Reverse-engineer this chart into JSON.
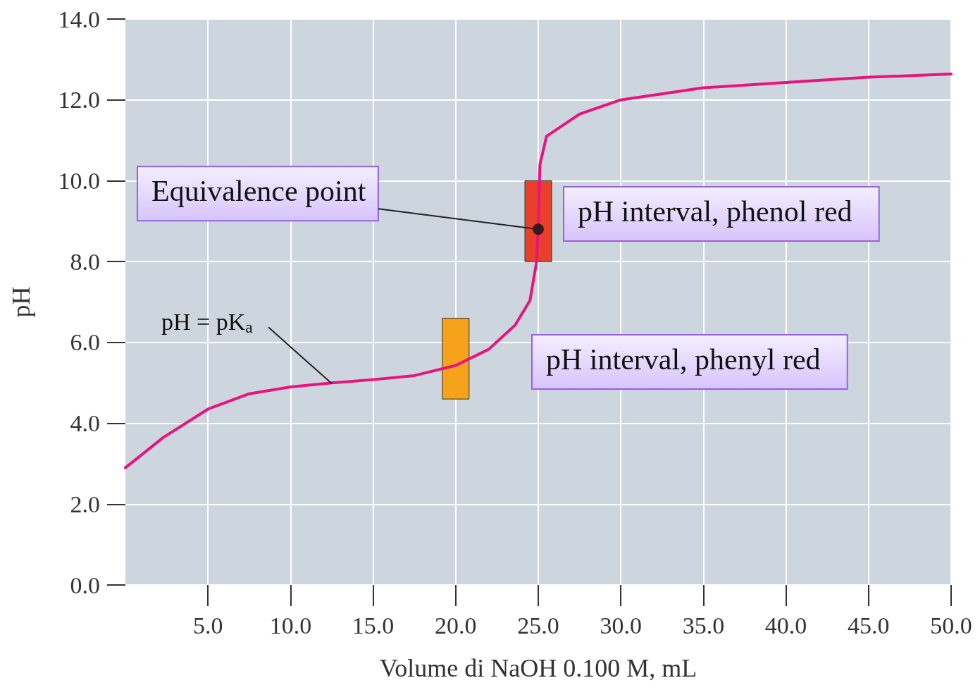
{
  "chart_data": {
    "type": "line",
    "xlabel": "Volume di NaOH 0.100 M, mL",
    "ylabel": "pH",
    "xlim": [
      0,
      50
    ],
    "xticks": [
      {
        "value": 5,
        "label": "5.0"
      },
      {
        "value": 10,
        "label": "10.0"
      },
      {
        "value": 15,
        "label": "15.0"
      },
      {
        "value": 20,
        "label": "20.0"
      },
      {
        "value": 25,
        "label": "25.0"
      },
      {
        "value": 30,
        "label": "30.0"
      },
      {
        "value": 35,
        "label": "35.0"
      },
      {
        "value": 40,
        "label": "40.0"
      },
      {
        "value": 45,
        "label": "45.0"
      },
      {
        "value": 50,
        "label": "50.0"
      }
    ],
    "ylim": [
      0,
      14
    ],
    "yticks": [
      {
        "value": 0,
        "label": "0.0"
      },
      {
        "value": 2,
        "label": "2.0"
      },
      {
        "value": 4,
        "label": "4.0"
      },
      {
        "value": 6,
        "label": "6.0"
      },
      {
        "value": 8,
        "label": "8.0"
      },
      {
        "value": 10,
        "label": "10.0"
      },
      {
        "value": 12,
        "label": "12.0"
      },
      {
        "value": 14,
        "label": "14.0"
      }
    ],
    "grid": true,
    "marker": "none",
    "line_style": "solid",
    "series": [
      {
        "color": "#e8147e",
        "x": [
          0,
          2.3,
          5,
          7.5,
          10,
          12.5,
          15,
          17.5,
          20,
          22,
          23.6,
          24.5,
          24.9,
          25,
          25.1,
          25.5,
          27.5,
          30,
          35,
          40,
          45,
          50
        ],
        "values": [
          2.9,
          3.65,
          4.35,
          4.73,
          4.9,
          5.0,
          5.08,
          5.18,
          5.43,
          5.83,
          6.43,
          7.04,
          8.0,
          8.87,
          10.4,
          11.1,
          11.65,
          12.0,
          12.3,
          12.43,
          12.56,
          12.64
        ]
      },
      {
        "type": "bar",
        "color": "#e8402a",
        "x": [
          25
        ],
        "base": [
          8.0
        ],
        "values": [
          2.0
        ]
      },
      {
        "type": "bar",
        "color": "#f7a21b",
        "x": [
          20
        ],
        "base": [
          4.6
        ],
        "values": [
          2.0
        ]
      },
      {
        "type": "scatter",
        "marker": "circle",
        "color": "#111111",
        "x": [
          25
        ],
        "values": [
          8.8
        ]
      }
    ],
    "annotations": [
      {
        "text": "Equivalence point",
        "x": 25,
        "y": 8.8
      },
      {
        "text": "pH = pK$_{a}$",
        "x": 12.5,
        "y": 4.98
      },
      "pH interval, phenol red",
      "pH interval, phenyl red"
    ]
  }
}
